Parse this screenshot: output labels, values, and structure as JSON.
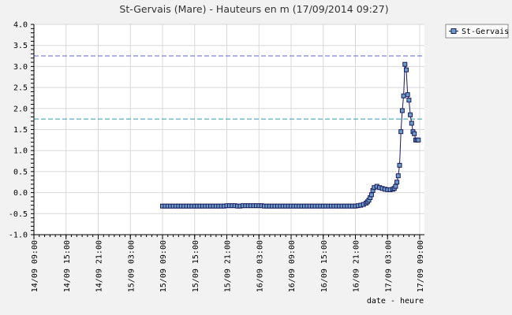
{
  "chart_data": {
    "type": "line",
    "title": "St-Gervais (Mare) - Hauteurs en m (17/09/2014 09:27)",
    "xlabel": "date - heure",
    "ylabel": "",
    "ylim": [
      -1.0,
      4.0
    ],
    "yticks": [
      "4.0",
      "3.5",
      "3.0",
      "2.5",
      "2.0",
      "1.5",
      "1.0",
      "0.5",
      "0.0",
      "-0.5",
      "-1.0"
    ],
    "xlim": [
      "14/09 09:00",
      "17/09 09:00"
    ],
    "xtick_labels": [
      "14/09 09:00",
      "14/09 15:00",
      "14/09 21:00",
      "15/09 03:00",
      "15/09 09:00",
      "15/09 15:00",
      "15/09 21:00",
      "16/09 03:00",
      "16/09 09:00",
      "16/09 15:00",
      "16/09 21:00",
      "17/09 03:00",
      "17/09 09:00"
    ],
    "grid": true,
    "legend_position": "top-right",
    "reference_lines": [
      {
        "y": 3.25,
        "color": "#6666cc",
        "style": "dashed"
      },
      {
        "y": 1.75,
        "color": "#3399aa",
        "style": "dashed"
      }
    ],
    "series": [
      {
        "name": "St-Gervais",
        "color": "#1a1a5e",
        "marker_color": "#6c9cc8",
        "x": [
          "15/09 09:00",
          "15/09 09:30",
          "15/09 10:00",
          "15/09 10:30",
          "15/09 11:00",
          "15/09 11:30",
          "15/09 12:00",
          "15/09 12:30",
          "15/09 13:00",
          "15/09 13:30",
          "15/09 14:00",
          "15/09 14:30",
          "15/09 15:00",
          "15/09 15:30",
          "15/09 16:00",
          "15/09 16:30",
          "15/09 17:00",
          "15/09 17:30",
          "15/09 18:00",
          "15/09 18:30",
          "15/09 19:00",
          "15/09 19:30",
          "15/09 20:00",
          "15/09 20:30",
          "15/09 21:00",
          "15/09 21:30",
          "15/09 22:00",
          "15/09 22:30",
          "15/09 23:00",
          "15/09 23:30",
          "16/09 00:00",
          "16/09 00:30",
          "16/09 01:00",
          "16/09 01:30",
          "16/09 02:00",
          "16/09 02:30",
          "16/09 03:00",
          "16/09 03:30",
          "16/09 04:00",
          "16/09 04:30",
          "16/09 05:00",
          "16/09 05:30",
          "16/09 06:00",
          "16/09 06:30",
          "16/09 07:00",
          "16/09 07:30",
          "16/09 08:00",
          "16/09 08:30",
          "16/09 09:00",
          "16/09 09:30",
          "16/09 10:00",
          "16/09 10:30",
          "16/09 11:00",
          "16/09 11:30",
          "16/09 12:00",
          "16/09 12:30",
          "16/09 13:00",
          "16/09 13:30",
          "16/09 14:00",
          "16/09 14:30",
          "16/09 15:00",
          "16/09 15:30",
          "16/09 16:00",
          "16/09 16:30",
          "16/09 17:00",
          "16/09 17:30",
          "16/09 18:00",
          "16/09 18:30",
          "16/09 19:00",
          "16/09 19:30",
          "16/09 20:00",
          "16/09 20:30",
          "16/09 21:00",
          "16/09 21:30",
          "16/09 22:00",
          "16/09 22:30",
          "16/09 23:00",
          "16/09 23:15",
          "16/09 23:30",
          "16/09 23:45",
          "17/09 00:00",
          "17/09 00:15",
          "17/09 00:30",
          "17/09 01:00",
          "17/09 01:30",
          "17/09 02:00",
          "17/09 02:30",
          "17/09 03:00",
          "17/09 03:30",
          "17/09 04:00",
          "17/09 04:15",
          "17/09 04:30",
          "17/09 04:45",
          "17/09 05:00",
          "17/09 05:15",
          "17/09 05:30",
          "17/09 05:45",
          "17/09 06:00",
          "17/09 06:15",
          "17/09 06:30",
          "17/09 06:45",
          "17/09 07:00",
          "17/09 07:15",
          "17/09 07:30",
          "17/09 07:45",
          "17/09 08:00",
          "17/09 08:15",
          "17/09 08:30",
          "17/09 08:45"
        ],
        "y": [
          -0.32,
          -0.32,
          -0.32,
          -0.32,
          -0.32,
          -0.32,
          -0.32,
          -0.32,
          -0.32,
          -0.32,
          -0.32,
          -0.32,
          -0.32,
          -0.32,
          -0.32,
          -0.32,
          -0.32,
          -0.32,
          -0.32,
          -0.32,
          -0.32,
          -0.32,
          -0.32,
          -0.32,
          -0.31,
          -0.31,
          -0.31,
          -0.31,
          -0.32,
          -0.32,
          -0.31,
          -0.31,
          -0.31,
          -0.31,
          -0.31,
          -0.31,
          -0.31,
          -0.31,
          -0.32,
          -0.32,
          -0.32,
          -0.32,
          -0.32,
          -0.32,
          -0.32,
          -0.32,
          -0.32,
          -0.32,
          -0.32,
          -0.32,
          -0.32,
          -0.32,
          -0.32,
          -0.32,
          -0.32,
          -0.32,
          -0.32,
          -0.32,
          -0.32,
          -0.32,
          -0.32,
          -0.32,
          -0.32,
          -0.32,
          -0.32,
          -0.32,
          -0.32,
          -0.32,
          -0.32,
          -0.32,
          -0.32,
          -0.32,
          -0.32,
          -0.31,
          -0.3,
          -0.28,
          -0.25,
          -0.22,
          -0.18,
          -0.12,
          -0.05,
          0.05,
          0.12,
          0.15,
          0.12,
          0.1,
          0.08,
          0.07,
          0.07,
          0.08,
          0.1,
          0.15,
          0.25,
          0.4,
          0.65,
          1.45,
          1.95,
          2.3,
          3.05,
          2.92,
          2.33,
          2.2,
          1.85,
          1.65,
          1.45,
          1.4,
          1.25,
          1.25,
          1.25
        ]
      }
    ]
  }
}
